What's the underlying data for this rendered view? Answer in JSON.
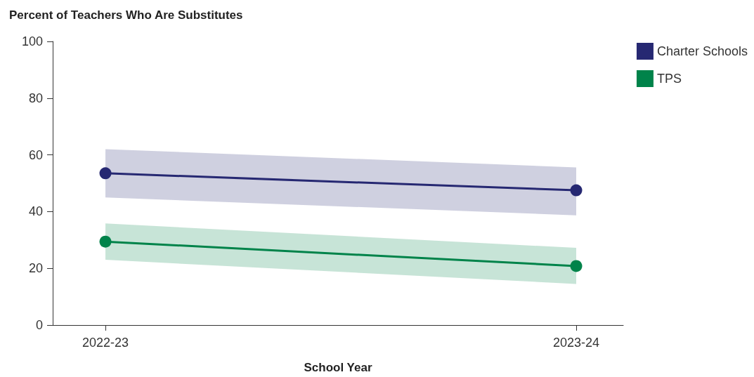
{
  "chart_data": {
    "type": "line",
    "title": "Percent of Teachers Who Are Substitutes",
    "xlabel": "School Year",
    "categories": [
      "2022-23",
      "2023-24"
    ],
    "series": [
      {
        "name": "Charter Schools",
        "color": "#262872",
        "values": [
          53.5,
          47.5
        ],
        "lower": [
          45,
          38.7
        ],
        "upper": [
          62,
          55.6
        ]
      },
      {
        "name": "TPS",
        "color": "#00834a",
        "values": [
          29.4,
          20.8
        ],
        "lower": [
          23,
          14.5
        ],
        "upper": [
          35.8,
          27.2
        ]
      }
    ],
    "ylim": [
      0,
      100
    ],
    "yticks": [
      0,
      20,
      40,
      60,
      80,
      100
    ],
    "grid": false,
    "legend": "top right",
    "marker": "circle",
    "line_style": "solid"
  }
}
